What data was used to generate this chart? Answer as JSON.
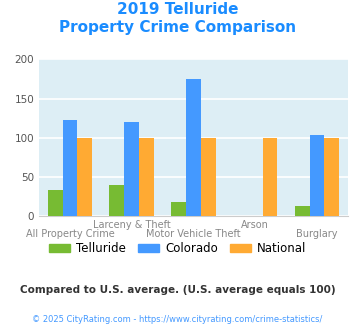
{
  "title_line1": "2019 Telluride",
  "title_line2": "Property Crime Comparison",
  "title_color": "#1a8cff",
  "categories": [
    "All Property Crime",
    "Larceny & Theft",
    "Motor Vehicle Theft",
    "Arson",
    "Burglary"
  ],
  "cat_line1": [
    "",
    "Larceny & Theft",
    "",
    "Arson",
    ""
  ],
  "cat_line2": [
    "All Property Crime",
    "",
    "Motor Vehicle Theft",
    "",
    "Burglary"
  ],
  "telluride": [
    33,
    40,
    18,
    0,
    13
  ],
  "colorado": [
    123,
    120,
    175,
    0,
    103
  ],
  "national": [
    100,
    100,
    100,
    100,
    100
  ],
  "telluride_color": "#77bb33",
  "colorado_color": "#4499ff",
  "national_color": "#ffaa33",
  "bg_color": "#ddeef5",
  "ylim": [
    0,
    200
  ],
  "yticks": [
    0,
    50,
    100,
    150,
    200
  ],
  "footnote1": "Compared to U.S. average. (U.S. average equals 100)",
  "footnote2": "© 2025 CityRating.com - https://www.cityrating.com/crime-statistics/",
  "footnote1_color": "#333333",
  "footnote2_color": "#4499ff",
  "legend_labels": [
    "Telluride",
    "Colorado",
    "National"
  ]
}
